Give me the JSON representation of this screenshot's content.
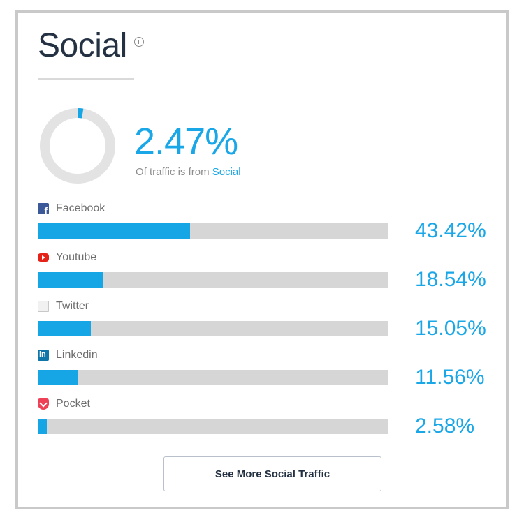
{
  "header": {
    "title": "Social"
  },
  "summary": {
    "value": "2.47%",
    "percent": 2.47,
    "text_prefix": "Of traffic is from",
    "text_highlight": "Social"
  },
  "sources": [
    {
      "name": "Facebook",
      "value": "43.42%",
      "percent": 43.42,
      "icon": "facebook-icon"
    },
    {
      "name": "Youtube",
      "value": "18.54%",
      "percent": 18.54,
      "icon": "youtube-icon"
    },
    {
      "name": "Twitter",
      "value": "15.05%",
      "percent": 15.05,
      "icon": "twitter-icon"
    },
    {
      "name": "Linkedin",
      "value": "11.56%",
      "percent": 11.56,
      "icon": "linkedin-icon"
    },
    {
      "name": "Pocket",
      "value": "2.58%",
      "percent": 2.58,
      "icon": "pocket-icon"
    }
  ],
  "actions": {
    "see_more_label": "See More Social Traffic"
  },
  "colors": {
    "accent": "#16a6e6",
    "track": "#d6d6d6",
    "title": "#233142"
  }
}
